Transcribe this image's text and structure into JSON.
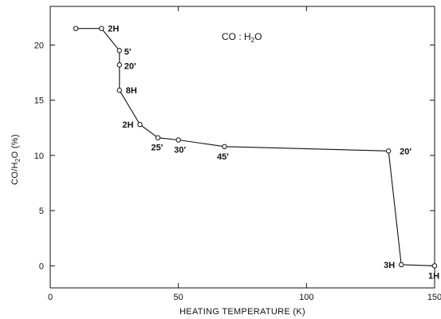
{
  "chart_data": {
    "type": "line",
    "title": "CO : H2O",
    "title_main": "CO : H",
    "title_sub": "2",
    "title_tail": "O",
    "xlabel": "HEATING TEMPERATURE (K)",
    "ylabel": "CO/H2O (%)",
    "ylabel_main": "CO/H",
    "ylabel_sub": "2",
    "ylabel_tail": "O (%)",
    "xlim": [
      0,
      150
    ],
    "ylim": [
      -2,
      23.5
    ],
    "x_ticks": [
      0,
      50,
      100,
      150
    ],
    "y_ticks": [
      0,
      5,
      10,
      15,
      20
    ],
    "grid": false,
    "series": [
      {
        "x": [
          10,
          20,
          27,
          27,
          27,
          35,
          42,
          50,
          68,
          132,
          137,
          150
        ],
        "y": [
          21.5,
          21.5,
          19.5,
          18.2,
          15.9,
          12.8,
          11.6,
          11.4,
          10.8,
          10.4,
          0.1,
          0
        ],
        "labels": [
          "",
          "2H",
          "5'",
          "20'",
          "8H",
          "2H",
          "25'",
          "30'",
          "45'",
          "20'",
          "3H",
          "1H"
        ]
      }
    ]
  }
}
